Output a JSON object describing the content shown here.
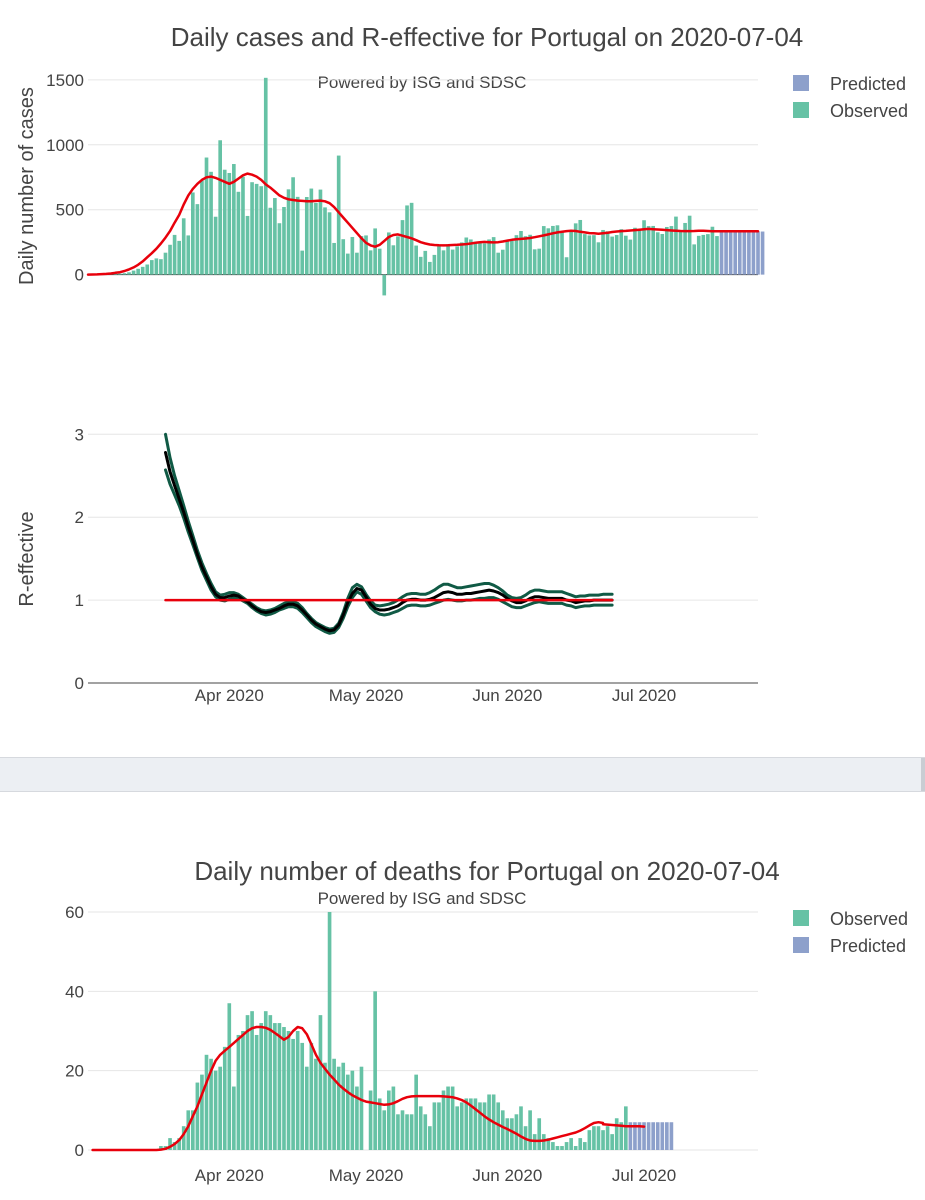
{
  "colors": {
    "observed": "#66c2a5",
    "predicted": "#8da0cb",
    "smooth": "#e8000b",
    "band": "#105a45",
    "median": "#000000"
  },
  "chart_data": [
    {
      "type": "bar",
      "title": "Daily cases and R-effective for Portugal on 2020-07-04",
      "subtitle": "Powered by ISG and SDSC",
      "ylabel": "Daily number of cases",
      "ylim": [
        -180,
        1530
      ],
      "yticks": [
        0,
        500,
        1000,
        1500
      ],
      "tick_labels": [
        "0",
        "500",
        "1000",
        "1500"
      ],
      "start_date": "2020-03-01",
      "observed_start_index": 1,
      "legend": [
        "Predicted",
        "Observed"
      ],
      "observed": [
        2,
        0,
        2,
        2,
        4,
        10,
        8,
        11,
        18,
        31,
        45,
        60,
        78,
        112,
        125,
        119,
        169,
        230,
        306,
        260,
        434,
        302,
        633,
        543,
        724,
        902,
        792,
        446,
        1035,
        808,
        783,
        852,
        638,
        754,
        452,
        712,
        699,
        681,
        1516,
        515,
        590,
        396,
        521,
        657,
        750,
        599,
        185,
        598,
        663,
        553,
        655,
        518,
        480,
        244,
        917,
        273,
        162,
        290,
        169,
        297,
        302,
        187,
        356,
        200,
        -160,
        325,
        226,
        295,
        420,
        533,
        553,
        224,
        137,
        183,
        98,
        152,
        225,
        187,
        235,
        193,
        218,
        248,
        286,
        271,
        255,
        252,
        241,
        271,
        289,
        169,
        192,
        256,
        261,
        304,
        336,
        296,
        307,
        195,
        200,
        374,
        357,
        375,
        380,
        334,
        134,
        330,
        395,
        421,
        312,
        302,
        304,
        249,
        344,
        334,
        293,
        305,
        350,
        300,
        270,
        361,
        346,
        419,
        374,
        375,
        326,
        313,
        367,
        374,
        447,
        343,
        398,
        454,
        233,
        299,
        306,
        312,
        369,
        297
      ],
      "predicted": [
        332,
        332,
        332,
        332,
        332,
        332,
        332,
        332,
        332,
        332
      ],
      "smooth": [
        0,
        1,
        2,
        4,
        6,
        9,
        14,
        19,
        28,
        40,
        56,
        76,
        102,
        134,
        165,
        200,
        240,
        285,
        335,
        400,
        460,
        540,
        610,
        660,
        700,
        730,
        750,
        755,
        745,
        730,
        715,
        700,
        715,
        740,
        765,
        778,
        770,
        755,
        730,
        695,
        670,
        640,
        610,
        592,
        580,
        575,
        570,
        568,
        565,
        565,
        568,
        570,
        565,
        550,
        520,
        480,
        440,
        400,
        360,
        320,
        280,
        245,
        225,
        215,
        230,
        260,
        290,
        305,
        310,
        300,
        290,
        280,
        265,
        250,
        240,
        232,
        228,
        226,
        225,
        226,
        228,
        230,
        232,
        235,
        240,
        245,
        250,
        252,
        250,
        248,
        250,
        255,
        262,
        268,
        272,
        275,
        278,
        282,
        288,
        295,
        302,
        310,
        318,
        325,
        330,
        335,
        338,
        336,
        330,
        325,
        320,
        318,
        315,
        318,
        322,
        328,
        332,
        335,
        337,
        340,
        343,
        346,
        350,
        352,
        350,
        348,
        345,
        343,
        340,
        338,
        336,
        335,
        335,
        336,
        338,
        338,
        336,
        334,
        334
      ],
      "smooth_predicted": [
        334,
        334,
        334,
        334,
        334,
        334,
        334,
        334,
        334,
        334
      ],
      "xticks": []
    },
    {
      "type": "line",
      "ylabel": "R-effective",
      "ylim": [
        0,
        3.1
      ],
      "yticks": [
        0,
        1,
        2,
        3
      ],
      "tick_labels": [
        "0",
        "1",
        "2",
        "3"
      ],
      "start_date": "2020-03-01",
      "reference_value": 1,
      "xtick_labels": [
        "Apr 2020",
        "May 2020",
        "Jun 2020",
        "Jul 2020"
      ],
      "xtick_dates": [
        "2020-04-01",
        "2020-05-01",
        "2020-06-01",
        "2020-07-01"
      ],
      "series_start_date": "2020-03-18",
      "median": [
        2.78,
        2.55,
        2.38,
        2.22,
        2.06,
        1.88,
        1.72,
        1.55,
        1.4,
        1.28,
        1.16,
        1.07,
        1.03,
        1.03,
        1.05,
        1.06,
        1.05,
        1.01,
        0.98,
        0.93,
        0.89,
        0.86,
        0.85,
        0.86,
        0.88,
        0.9,
        0.93,
        0.95,
        0.95,
        0.93,
        0.88,
        0.82,
        0.76,
        0.71,
        0.68,
        0.65,
        0.63,
        0.64,
        0.7,
        0.82,
        0.97,
        1.08,
        1.14,
        1.12,
        1.04,
        0.95,
        0.9,
        0.88,
        0.88,
        0.89,
        0.91,
        0.93,
        0.97,
        1.0,
        1.01,
        1.01,
        1.0,
        1.0,
        1.01,
        1.03,
        1.06,
        1.09,
        1.1,
        1.09,
        1.07,
        1.07,
        1.08,
        1.08,
        1.09,
        1.1,
        1.11,
        1.12,
        1.11,
        1.09,
        1.06,
        1.02,
        0.99,
        0.97,
        0.97,
        0.99,
        1.02,
        1.04,
        1.04,
        1.03,
        1.02,
        1.02,
        1.02,
        1.02,
        1.0,
        0.99,
        0.97,
        0.98,
        0.99,
        0.99,
        1.0,
        1.0,
        1.0,
        1.0,
        1.0
      ],
      "upper": [
        3.0,
        2.72,
        2.5,
        2.32,
        2.14,
        1.95,
        1.78,
        1.6,
        1.45,
        1.32,
        1.2,
        1.1,
        1.06,
        1.07,
        1.09,
        1.09,
        1.07,
        1.03,
        0.99,
        0.95,
        0.91,
        0.88,
        0.87,
        0.88,
        0.9,
        0.93,
        0.96,
        0.98,
        0.98,
        0.96,
        0.91,
        0.84,
        0.78,
        0.73,
        0.7,
        0.67,
        0.65,
        0.66,
        0.72,
        0.85,
        1.02,
        1.15,
        1.19,
        1.16,
        1.07,
        0.99,
        0.94,
        0.93,
        0.94,
        0.95,
        0.97,
        1.0,
        1.04,
        1.07,
        1.08,
        1.08,
        1.07,
        1.07,
        1.09,
        1.12,
        1.16,
        1.19,
        1.19,
        1.17,
        1.15,
        1.15,
        1.16,
        1.17,
        1.18,
        1.19,
        1.2,
        1.2,
        1.18,
        1.15,
        1.11,
        1.06,
        1.03,
        1.02,
        1.03,
        1.06,
        1.1,
        1.12,
        1.12,
        1.11,
        1.1,
        1.1,
        1.1,
        1.1,
        1.08,
        1.06,
        1.04,
        1.05,
        1.05,
        1.06,
        1.06,
        1.06,
        1.07,
        1.07,
        1.07
      ],
      "lower": [
        2.57,
        2.4,
        2.27,
        2.14,
        1.99,
        1.82,
        1.67,
        1.51,
        1.36,
        1.24,
        1.12,
        1.04,
        1.0,
        0.99,
        1.01,
        1.03,
        1.02,
        0.99,
        0.96,
        0.91,
        0.87,
        0.84,
        0.82,
        0.83,
        0.85,
        0.88,
        0.9,
        0.92,
        0.92,
        0.9,
        0.85,
        0.79,
        0.73,
        0.68,
        0.65,
        0.62,
        0.6,
        0.61,
        0.67,
        0.78,
        0.92,
        1.03,
        1.1,
        1.07,
        0.99,
        0.91,
        0.86,
        0.83,
        0.82,
        0.83,
        0.85,
        0.87,
        0.9,
        0.93,
        0.94,
        0.94,
        0.93,
        0.93,
        0.94,
        0.96,
        0.98,
        1.0,
        1.01,
        1.0,
        0.99,
        0.99,
        1.0,
        1.0,
        1.01,
        1.02,
        1.02,
        1.03,
        1.03,
        1.01,
        0.98,
        0.95,
        0.92,
        0.91,
        0.91,
        0.93,
        0.95,
        0.97,
        0.98,
        0.97,
        0.96,
        0.96,
        0.96,
        0.96,
        0.94,
        0.93,
        0.91,
        0.92,
        0.93,
        0.93,
        0.94,
        0.94,
        0.94,
        0.94,
        0.94
      ]
    },
    {
      "type": "bar",
      "title": "Daily number of deaths for Portugal on 2020-07-04",
      "subtitle": "Powered by ISG and SDSC",
      "ylim": [
        0,
        60
      ],
      "yticks": [
        0,
        20,
        40,
        60
      ],
      "tick_labels": [
        "0",
        "20",
        "40",
        "60"
      ],
      "start_date": "2020-03-01",
      "legend": [
        "Observed",
        "Predicted"
      ],
      "xtick_labels": [
        "Apr 2020",
        "May 2020",
        "Jun 2020",
        "Jul 2020"
      ],
      "xtick_dates": [
        "2020-04-01",
        "2020-05-01",
        "2020-06-01",
        "2020-07-01"
      ],
      "observed": [
        0,
        0,
        0,
        0,
        0,
        0,
        0,
        0,
        0,
        0,
        0,
        0,
        0,
        0,
        0,
        1,
        1,
        3,
        2,
        3,
        6,
        10,
        10,
        17,
        19,
        24,
        23,
        20,
        21,
        26,
        37,
        16,
        29,
        30,
        34,
        35,
        29,
        32,
        35,
        34,
        32,
        32,
        31,
        30,
        28,
        30,
        27,
        21,
        27,
        23,
        34,
        22,
        60,
        23,
        21,
        22,
        19,
        20,
        16,
        21,
        0,
        15,
        40,
        13,
        10,
        15,
        16,
        9,
        10,
        9,
        9,
        19,
        11,
        9,
        6,
        12,
        12,
        15,
        16,
        16,
        11,
        12,
        13,
        13,
        13,
        12,
        12,
        14,
        14,
        12,
        10,
        8,
        8,
        9,
        11,
        6,
        10,
        4,
        8,
        4,
        3,
        2,
        1,
        1,
        2,
        3,
        1,
        3,
        2,
        5,
        6,
        6,
        5,
        6,
        4,
        8,
        7,
        11
      ],
      "predicted": [
        7,
        7,
        7,
        7,
        7,
        7,
        7,
        7,
        7,
        7
      ],
      "smooth": [
        0,
        0,
        0,
        0,
        0,
        0,
        0,
        0,
        0,
        0,
        0,
        0,
        0,
        0,
        0,
        0.1,
        0.3,
        0.8,
        1.5,
        2.5,
        4.0,
        6.0,
        8.5,
        11.0,
        14.0,
        17.0,
        20.0,
        22.5,
        24.0,
        25.0,
        26.0,
        27.0,
        28.0,
        29.0,
        30.0,
        30.7,
        31.0,
        31.0,
        30.8,
        30.3,
        29.5,
        28.7,
        27.8,
        28.5,
        30.0,
        31.0,
        30.7,
        29.2,
        26.7,
        24.0,
        22.0,
        20.5,
        19.0,
        17.8,
        16.5,
        15.5,
        14.6,
        13.8,
        13.2,
        12.6,
        12.2,
        12.0,
        11.8,
        11.6,
        11.4,
        11.5,
        11.8,
        12.3,
        12.9,
        13.3,
        13.5,
        13.6,
        13.6,
        13.6,
        13.6,
        13.6,
        13.6,
        13.5,
        13.4,
        13.3,
        13.0,
        12.6,
        12.0,
        11.2,
        10.3,
        9.4,
        8.5,
        7.7,
        7.0,
        6.4,
        5.8,
        5.3,
        4.7,
        4.1,
        3.4,
        2.8,
        2.4,
        2.3,
        2.3,
        2.4,
        2.6,
        2.9,
        3.2,
        3.5,
        3.8,
        4.1,
        4.4,
        4.9,
        5.5,
        6.2,
        6.8,
        7.0,
        6.8
      ],
      "smooth_predicted": [
        6.5,
        6.4,
        6.3,
        6.2,
        6.1,
        6.0,
        6.0,
        6.0,
        6.0,
        5.9
      ]
    }
  ]
}
